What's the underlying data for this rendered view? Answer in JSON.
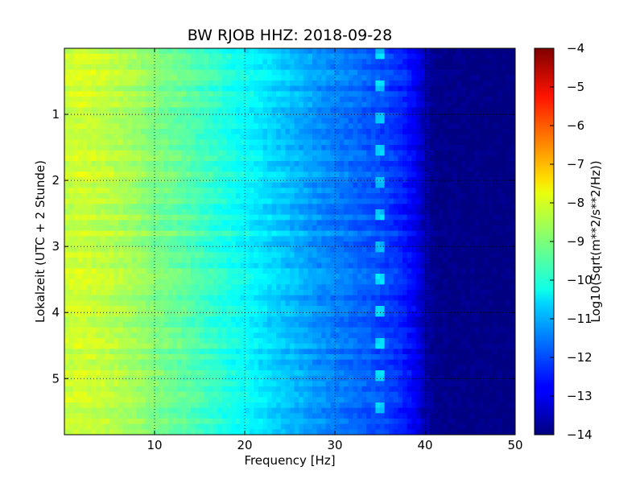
{
  "chart_data": {
    "type": "heatmap",
    "title": "BW RJOB HHZ: 2018-09-28",
    "xlabel": "Frequency [Hz]",
    "ylabel": "Lokalzeit (UTC + 2 Stunde)",
    "xlim": [
      0,
      50
    ],
    "ylim": [
      5.85,
      0
    ],
    "x_ticks": [
      10,
      20,
      30,
      40,
      50
    ],
    "y_ticks": [
      1,
      2,
      3,
      4,
      5
    ],
    "grid": true,
    "colormap": "jet",
    "colorbar": {
      "label": "Log10(Sqrt(m**2/s**2/Hz))",
      "range": [
        -14,
        -4
      ],
      "ticks": [
        -4,
        -5,
        -6,
        -7,
        -8,
        -9,
        -10,
        -11,
        -12,
        -13,
        -14
      ]
    },
    "profile": {
      "frequency_hz": [
        0,
        2,
        5,
        8,
        10,
        13,
        16,
        19,
        22,
        25,
        28,
        31,
        34,
        37,
        39,
        40,
        41,
        50
      ],
      "log10_amplitude": [
        -8.3,
        -8.2,
        -8.4,
        -8.7,
        -9.0,
        -9.3,
        -9.7,
        -10.1,
        -10.5,
        -10.9,
        -11.3,
        -11.6,
        -11.9,
        -12.3,
        -12.9,
        -13.5,
        -13.9,
        -14.0
      ]
    },
    "annotations_note": "",
    "line_features_hz": [
      35
    ]
  }
}
